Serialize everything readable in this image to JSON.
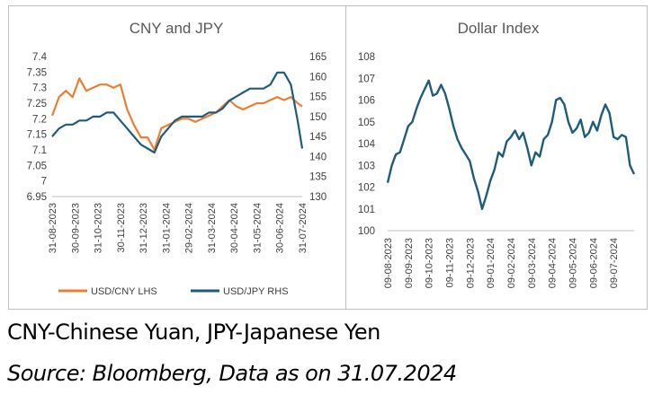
{
  "colors": {
    "cny": "#ed7d31",
    "jpy": "#1f5c7a",
    "dxy": "#1f5c7a",
    "grid": "#d9d9d9",
    "axis": "#bfbfbf"
  },
  "captions": {
    "line1": "CNY-Chinese Yuan, JPY-Japanese Yen",
    "line2": "Source: Bloomberg, Data as on 31.07.2024"
  },
  "chart_data": [
    {
      "type": "line",
      "title": "CNY and JPY",
      "x_ticks": [
        "31-08-2023",
        "30-09-2023",
        "31-10-2023",
        "30-11-2023",
        "31-12-2023",
        "31-01-2024",
        "29-02-2024",
        "31-03-2024",
        "30-04-2024",
        "31-05-2024",
        "30-06-2024",
        "31-07-2024"
      ],
      "left_axis": {
        "ylim": [
          6.95,
          7.4
        ],
        "ticks": [
          "7.4",
          "7.35",
          "7.3",
          "7.25",
          "7.2",
          "7.15",
          "7.1",
          "7.05",
          "7",
          "6.95"
        ]
      },
      "right_axis": {
        "ylim": [
          130,
          165
        ],
        "ticks": [
          "165",
          "160",
          "155",
          "150",
          "145",
          "140",
          "135",
          "130"
        ]
      },
      "legend_position": "bottom",
      "series": [
        {
          "name": "USD/CNY LHS",
          "axis": "left",
          "x": [
            0,
            0.3,
            0.6,
            0.9,
            1.2,
            1.5,
            1.8,
            2.1,
            2.4,
            2.7,
            3.0,
            3.3,
            3.6,
            3.9,
            4.2,
            4.5,
            4.8,
            5.1,
            5.4,
            5.7,
            6.0,
            6.3,
            6.6,
            6.9,
            7.2,
            7.5,
            7.8,
            8.1,
            8.4,
            8.7,
            9.0,
            9.3,
            9.6,
            9.9,
            10.2,
            10.5,
            10.8,
            11.0
          ],
          "values": [
            7.21,
            7.27,
            7.29,
            7.27,
            7.33,
            7.29,
            7.3,
            7.31,
            7.31,
            7.3,
            7.31,
            7.23,
            7.18,
            7.14,
            7.14,
            7.1,
            7.17,
            7.18,
            7.19,
            7.2,
            7.2,
            7.19,
            7.2,
            7.21,
            7.22,
            7.24,
            7.26,
            7.24,
            7.23,
            7.24,
            7.25,
            7.25,
            7.26,
            7.27,
            7.26,
            7.27,
            7.25,
            7.24
          ]
        },
        {
          "name": "USD/JPY RHS",
          "axis": "right",
          "x": [
            0,
            0.3,
            0.6,
            0.9,
            1.2,
            1.5,
            1.8,
            2.1,
            2.4,
            2.7,
            3.0,
            3.3,
            3.6,
            3.9,
            4.2,
            4.5,
            4.8,
            5.1,
            5.4,
            5.7,
            6.0,
            6.3,
            6.6,
            6.9,
            7.2,
            7.5,
            7.8,
            8.1,
            8.4,
            8.7,
            9.0,
            9.3,
            9.6,
            9.9,
            10.2,
            10.5,
            10.8,
            11.0
          ],
          "values": [
            145,
            147,
            148,
            148,
            149,
            149,
            150,
            150,
            151,
            151,
            149,
            147,
            145,
            143,
            142,
            141,
            145,
            147,
            149,
            150,
            150,
            150,
            150,
            151,
            151,
            152,
            154,
            155,
            156,
            157,
            157,
            157,
            158,
            161,
            161,
            158,
            149,
            142
          ]
        }
      ]
    },
    {
      "type": "line",
      "title": "Dollar Index",
      "x_ticks": [
        "09-08-2023",
        "09-09-2023",
        "09-10-2023",
        "09-11-2023",
        "09-12-2023",
        "09-01-2024",
        "09-02-2024",
        "09-03-2024",
        "09-04-2024",
        "09-05-2024",
        "09-06-2024",
        "09-07-2024"
      ],
      "ylim": [
        100,
        108
      ],
      "y_ticks": [
        "108",
        "107",
        "106",
        "105",
        "104",
        "103",
        "102",
        "101",
        "100"
      ],
      "series": [
        {
          "x": [
            0,
            0.2,
            0.4,
            0.6,
            0.8,
            1.0,
            1.2,
            1.4,
            1.6,
            1.8,
            2.0,
            2.2,
            2.4,
            2.6,
            2.8,
            3.0,
            3.2,
            3.4,
            3.6,
            3.8,
            4.0,
            4.2,
            4.4,
            4.6,
            4.8,
            5.0,
            5.2,
            5.4,
            5.6,
            5.8,
            6.0,
            6.2,
            6.4,
            6.6,
            6.8,
            7.0,
            7.2,
            7.4,
            7.6,
            7.8,
            8.0,
            8.2,
            8.4,
            8.6,
            8.8,
            9.0,
            9.2,
            9.4,
            9.6,
            9.8,
            10.0,
            10.2,
            10.4,
            10.6,
            10.8,
            11.0,
            11.2,
            11.4,
            11.6,
            11.8,
            12.0
          ],
          "values": [
            102.2,
            103.0,
            103.5,
            103.6,
            104.2,
            104.8,
            105.0,
            105.6,
            106.1,
            106.5,
            106.9,
            106.2,
            106.3,
            106.7,
            106.3,
            105.6,
            104.8,
            104.2,
            103.8,
            103.5,
            103.2,
            102.4,
            101.8,
            101.0,
            101.6,
            102.3,
            102.8,
            103.6,
            103.4,
            104.1,
            104.3,
            104.6,
            104.2,
            104.5,
            103.8,
            103.0,
            103.6,
            103.4,
            104.2,
            104.4,
            105.0,
            106.0,
            106.1,
            105.8,
            105.0,
            104.5,
            104.7,
            105.1,
            104.3,
            104.5,
            105.0,
            104.6,
            105.3,
            105.8,
            105.4,
            104.3,
            104.2,
            104.4,
            104.3,
            103.0,
            102.6
          ]
        }
      ]
    }
  ]
}
